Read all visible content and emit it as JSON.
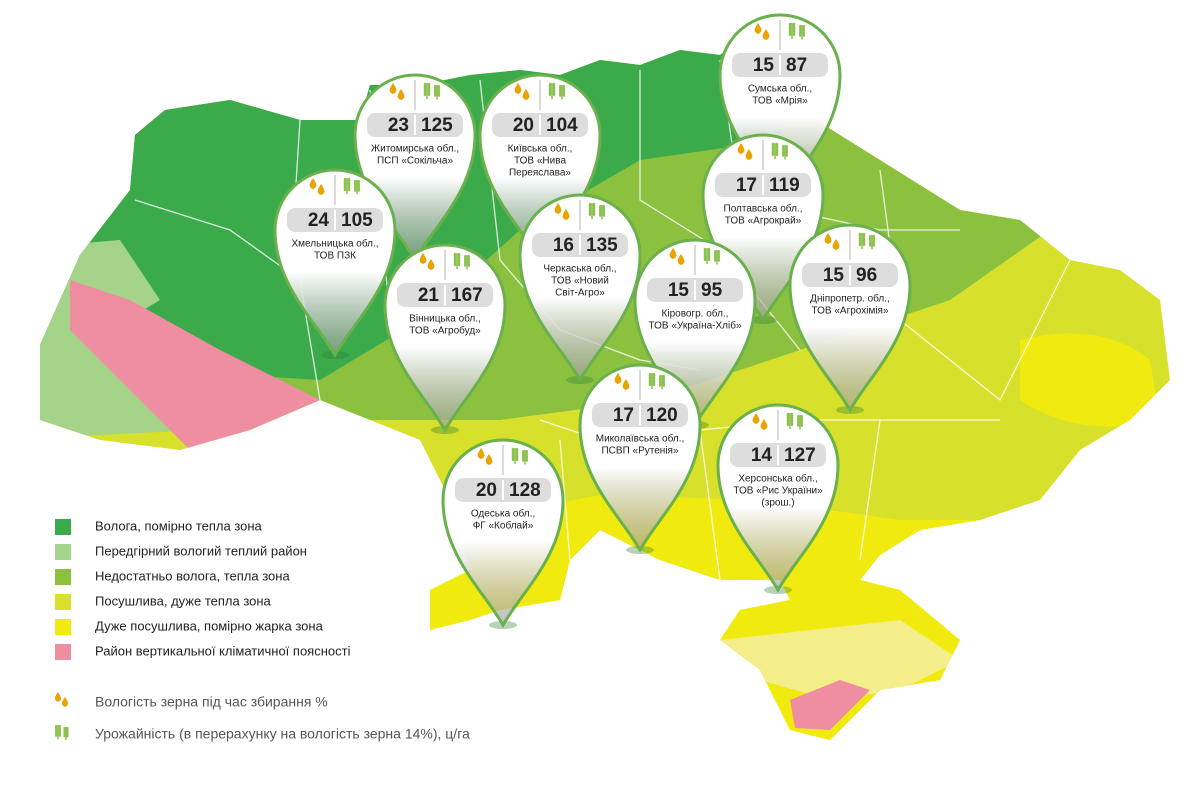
{
  "pins": [
    {
      "moisture": 23,
      "yield": 125,
      "label_lines": [
        "Житомирська обл.,",
        "ПСП «Сокільча»"
      ]
    },
    {
      "moisture": 20,
      "yield": 104,
      "label_lines": [
        "Київська обл.,",
        "ТОВ «Нива",
        "Переяслава»"
      ]
    },
    {
      "moisture": 15,
      "yield": 87,
      "label_lines": [
        "Сумська обл.,",
        "ТОВ «Мрія»"
      ]
    },
    {
      "moisture": 24,
      "yield": 105,
      "label_lines": [
        "Хмельницька обл.,",
        "ТОВ ПЗК"
      ]
    },
    {
      "moisture": 17,
      "yield": 119,
      "label_lines": [
        "Полтавська обл.,",
        "ТОВ «Агрокрай»"
      ]
    },
    {
      "moisture": 16,
      "yield": 135,
      "label_lines": [
        "Черкаська обл.,",
        "ТОВ «Новий",
        "Світ-Агро»"
      ]
    },
    {
      "moisture": 21,
      "yield": 167,
      "label_lines": [
        "Вінницька обл.,",
        "ТОВ «Агробуд»"
      ]
    },
    {
      "moisture": 15,
      "yield": 95,
      "label_lines": [
        "Кіровогр. обл.,",
        "ТОВ «Україна-Хліб»"
      ]
    },
    {
      "moisture": 15,
      "yield": 96,
      "label_lines": [
        "Дніпропетр. обл.,",
        "ТОВ «Агрохімія»"
      ]
    },
    {
      "moisture": 17,
      "yield": 120,
      "label_lines": [
        "Миколаївська обл.,",
        "ПСВП «Рутенія»"
      ]
    },
    {
      "moisture": 14,
      "yield": 127,
      "label_lines": [
        "Херсонська обл.,",
        "ТОВ «Рис України»",
        "(зрош.)"
      ]
    },
    {
      "moisture": 20,
      "yield": 128,
      "label_lines": [
        "Одеська обл.,",
        "ФГ «Коблай»"
      ]
    }
  ],
  "legend": {
    "zones": [
      {
        "label": "Волога, помірно тепла зона",
        "color": "#3aaa4a"
      },
      {
        "label": "Передгірний вологий теплий район",
        "color": "#a6d38a"
      },
      {
        "label": "Недостатньо волога, тепла зона",
        "color": "#8cc13f"
      },
      {
        "label": "Посушлива, дуже тепла зона",
        "color": "#d7e02a"
      },
      {
        "label": "Дуже посушлива, помірно жарка зона",
        "color": "#f1ea0f"
      },
      {
        "label": "Район вертикальної кліматичної поясності",
        "color": "#ee8ea0"
      }
    ],
    "moisture_note": "Вологість зерна під час збирання %",
    "yield_note": "Урожайність (в перерахунку на вологість зерна 14%), ц/га"
  }
}
